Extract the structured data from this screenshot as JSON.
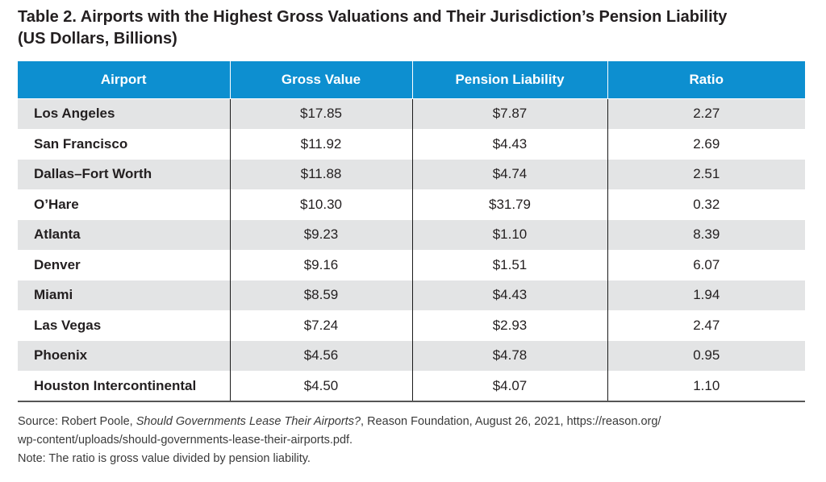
{
  "title": {
    "line1": "Table 2. Airports with the Highest Gross Valuations and Their Jurisdiction’s Pension Liability",
    "line2": "(US Dollars, Billions)"
  },
  "chart_data": {
    "type": "table",
    "columns": [
      "Airport",
      "Gross Value",
      "Pension Liability",
      "Ratio"
    ],
    "rows": [
      [
        "Los Angeles",
        "$17.85",
        "$7.87",
        "2.27"
      ],
      [
        "San Francisco",
        "$11.92",
        "$4.43",
        "2.69"
      ],
      [
        "Dallas–Fort Worth",
        "$11.88",
        "$4.74",
        "2.51"
      ],
      [
        "O’Hare",
        "$10.30",
        "$31.79",
        "0.32"
      ],
      [
        "Atlanta",
        "$9.23",
        "$1.10",
        "8.39"
      ],
      [
        "Denver",
        "$9.16",
        "$1.51",
        "6.07"
      ],
      [
        "Miami",
        "$8.59",
        "$4.43",
        "1.94"
      ],
      [
        "Las Vegas",
        "$7.24",
        "$2.93",
        "2.47"
      ],
      [
        "Phoenix",
        "$4.56",
        "$4.78",
        "0.95"
      ],
      [
        "Houston Intercontinental",
        "$4.50",
        "$4.07",
        "1.10"
      ]
    ]
  },
  "colors": {
    "header_bg": "#0d8fd0",
    "header_text": "#ffffff",
    "shaded_row": "#e3e4e5"
  },
  "footer": {
    "source_prefix": "Source: Robert Poole, ",
    "source_title": "Should Governments Lease Their Airports?",
    "source_suffix": ", Reason Foundation, August 26, 2021, https://reason.org/",
    "source_line2": "wp-content/uploads/should-governments-lease-their-airports.pdf.",
    "note": "Note: The ratio is gross value divided by pension liability."
  }
}
